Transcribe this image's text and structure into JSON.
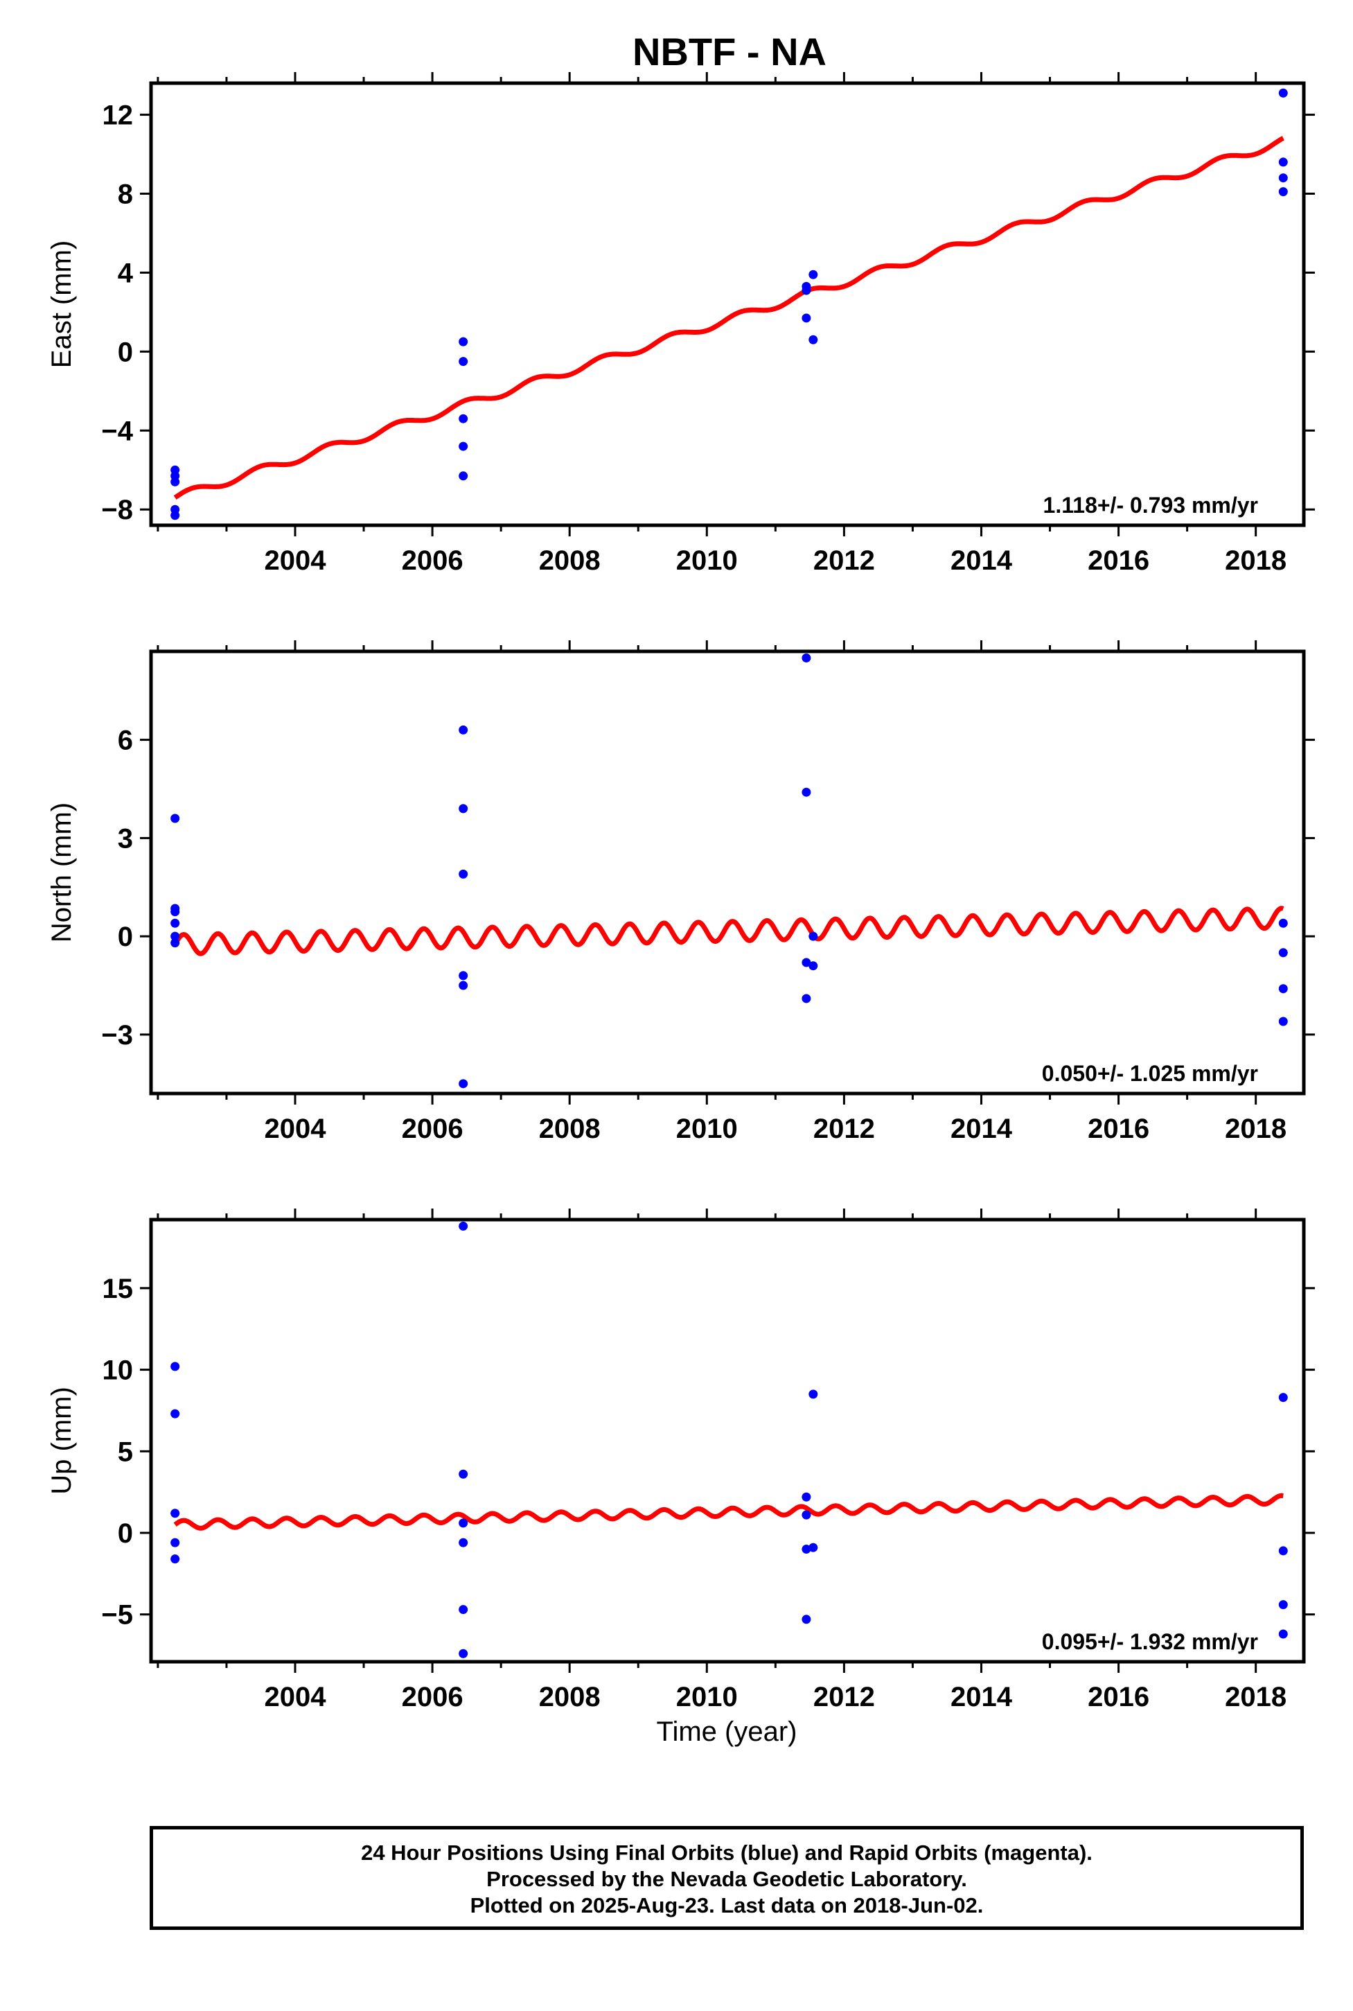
{
  "title": "NBTF - NA",
  "xlabel": "Time (year)",
  "footer": {
    "line1": "24 Hour Positions Using Final Orbits (blue) and Rapid Orbits (magenta).",
    "line2": "Processed by the Nevada Geodetic Laboratory.",
    "line3": "Plotted on 2025-Aug-23. Last data on 2018-Jun-02."
  },
  "colors": {
    "points": "#0000ff",
    "model": "#ff0000",
    "frame": "#000000"
  },
  "chart_data": [
    {
      "type": "scatter",
      "ylabel": "East (mm)",
      "rate_text": "1.118+/- 0.793 mm/yr",
      "xlim": [
        2001.9,
        2018.7
      ],
      "ylim": [
        -8.8,
        13.6
      ],
      "xticks": [
        2004,
        2006,
        2008,
        2010,
        2012,
        2014,
        2016,
        2018
      ],
      "yticks": [
        -8,
        -4,
        0,
        4,
        8,
        12
      ],
      "ytick_labels": [
        "−8",
        "−4",
        "0",
        "4",
        "8",
        "12"
      ],
      "points": [
        [
          2002.25,
          -6.0
        ],
        [
          2002.25,
          -6.3
        ],
        [
          2002.25,
          -6.6
        ],
        [
          2002.25,
          -8.0
        ],
        [
          2002.25,
          -8.3
        ],
        [
          2006.45,
          0.5
        ],
        [
          2006.45,
          -0.5
        ],
        [
          2006.45,
          -3.4
        ],
        [
          2006.45,
          -4.8
        ],
        [
          2006.45,
          -6.3
        ],
        [
          2011.45,
          3.3
        ],
        [
          2011.45,
          3.1
        ],
        [
          2011.45,
          1.7
        ],
        [
          2011.55,
          3.9
        ],
        [
          2011.55,
          0.6
        ],
        [
          2018.4,
          13.1
        ],
        [
          2018.4,
          9.6
        ],
        [
          2018.4,
          8.8
        ],
        [
          2018.4,
          8.1
        ]
      ],
      "model": {
        "x_start": 2002.25,
        "x_end": 2018.4,
        "y_start": -7.4,
        "slope": 1.118,
        "amplitude": 0.2,
        "period": 1.0,
        "phase": 0.0
      }
    },
    {
      "type": "scatter",
      "ylabel": "North (mm)",
      "rate_text": "0.050+/- 1.025 mm/yr",
      "xlim": [
        2001.9,
        2018.7
      ],
      "ylim": [
        -4.8,
        8.7
      ],
      "xticks": [
        2004,
        2006,
        2008,
        2010,
        2012,
        2014,
        2016,
        2018
      ],
      "yticks": [
        -3,
        0,
        3,
        6
      ],
      "ytick_labels": [
        "−3",
        "0",
        "3",
        "6"
      ],
      "points": [
        [
          2002.25,
          3.6
        ],
        [
          2002.25,
          0.85
        ],
        [
          2002.25,
          0.75
        ],
        [
          2002.25,
          0.4
        ],
        [
          2002.25,
          0.0
        ],
        [
          2002.25,
          -0.2
        ],
        [
          2006.45,
          6.3
        ],
        [
          2006.45,
          3.9
        ],
        [
          2006.45,
          1.9
        ],
        [
          2006.45,
          -1.2
        ],
        [
          2006.45,
          -1.5
        ],
        [
          2006.45,
          -4.5
        ],
        [
          2011.45,
          8.5
        ],
        [
          2011.45,
          4.4
        ],
        [
          2011.45,
          -0.8
        ],
        [
          2011.45,
          -1.9
        ],
        [
          2011.55,
          -0.9
        ],
        [
          2011.55,
          0.0
        ],
        [
          2018.4,
          0.4
        ],
        [
          2018.4,
          -0.5
        ],
        [
          2018.4,
          -1.6
        ],
        [
          2018.4,
          -2.6
        ]
      ],
      "model": {
        "x_start": 2002.25,
        "x_end": 2018.4,
        "y_start": -0.25,
        "slope": 0.05,
        "amplitude": 0.3,
        "period": 0.5,
        "phase": 0.0
      }
    },
    {
      "type": "scatter",
      "ylabel": "Up (mm)",
      "rate_text": "0.095+/- 1.932 mm/yr",
      "xlim": [
        2001.9,
        2018.7
      ],
      "ylim": [
        -7.9,
        19.2
      ],
      "xticks": [
        2004,
        2006,
        2008,
        2010,
        2012,
        2014,
        2016,
        2018
      ],
      "yticks": [
        -5,
        0,
        5,
        10,
        15
      ],
      "ytick_labels": [
        "−5",
        "0",
        "5",
        "10",
        "15"
      ],
      "points": [
        [
          2002.25,
          10.2
        ],
        [
          2002.25,
          7.3
        ],
        [
          2002.25,
          1.2
        ],
        [
          2002.25,
          -0.6
        ],
        [
          2002.25,
          -1.6
        ],
        [
          2006.45,
          18.8
        ],
        [
          2006.45,
          3.6
        ],
        [
          2006.45,
          0.6
        ],
        [
          2006.45,
          -0.6
        ],
        [
          2006.45,
          -4.7
        ],
        [
          2006.45,
          -7.4
        ],
        [
          2011.45,
          2.2
        ],
        [
          2011.45,
          1.1
        ],
        [
          2011.45,
          -1.0
        ],
        [
          2011.45,
          -5.3
        ],
        [
          2011.55,
          8.5
        ],
        [
          2011.55,
          -0.9
        ],
        [
          2018.4,
          8.3
        ],
        [
          2018.4,
          -1.1
        ],
        [
          2018.4,
          -4.4
        ],
        [
          2018.4,
          -6.2
        ]
      ],
      "model": {
        "x_start": 2002.25,
        "x_end": 2018.4,
        "y_start": 0.5,
        "slope": 0.095,
        "amplitude": 0.25,
        "period": 0.5,
        "phase": 0.0
      }
    }
  ]
}
